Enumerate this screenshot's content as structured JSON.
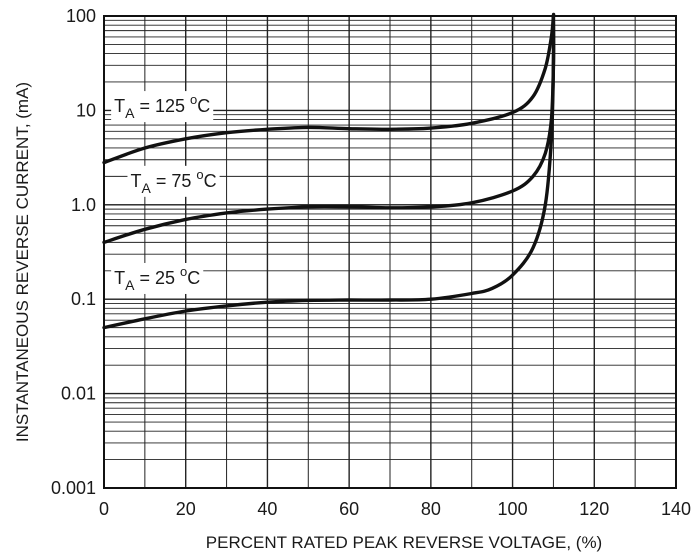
{
  "chart_data": {
    "type": "line",
    "title": "",
    "xlabel": "PERCENT RATED PEAK REVERSE VOLTAGE, (%)",
    "ylabel": "INSTANTANEOUS REVERSE CURRENT, (mA)",
    "xlim": [
      0,
      140
    ],
    "ylim": [
      0.001,
      100
    ],
    "yscale": "log",
    "grid": true,
    "x_ticks": [
      "0",
      "20",
      "40",
      "60",
      "80",
      "100",
      "120",
      "140"
    ],
    "y_ticks": [
      "0.001",
      "0.01",
      "0.1",
      "1.0",
      "10",
      "100"
    ],
    "series": [
      {
        "name": "TA = 125 °C",
        "label_main": "T",
        "label_sub": "A",
        "label_rest": " = 125 ",
        "label_sup": "o",
        "label_unit": "C",
        "x": [
          0,
          10,
          20,
          30,
          40,
          50,
          60,
          70,
          80,
          90,
          100,
          105,
          108,
          109.5,
          110,
          110
        ],
        "y": [
          2.8,
          4.0,
          5.0,
          5.8,
          6.3,
          6.6,
          6.4,
          6.3,
          6.5,
          7.3,
          9.5,
          14,
          28,
          60,
          100,
          100
        ]
      },
      {
        "name": "TA = 75 °C",
        "label_main": "T",
        "label_sub": "A",
        "label_rest": " = 75 ",
        "label_sup": "o",
        "label_unit": "C",
        "x": [
          0,
          10,
          20,
          30,
          40,
          50,
          60,
          70,
          80,
          90,
          100,
          105,
          108,
          109.5,
          110,
          110
        ],
        "y": [
          0.4,
          0.55,
          0.7,
          0.82,
          0.9,
          0.95,
          0.95,
          0.93,
          0.95,
          1.05,
          1.4,
          2.0,
          3.5,
          8,
          30,
          100
        ]
      },
      {
        "name": "TA = 25 °C",
        "label_main": "T",
        "label_sub": "A",
        "label_rest": " = 25 ",
        "label_sup": "o",
        "label_unit": "C",
        "x": [
          0,
          10,
          20,
          30,
          40,
          50,
          60,
          70,
          80,
          90,
          95,
          100,
          105,
          108,
          109.5,
          110,
          110
        ],
        "y": [
          0.05,
          0.062,
          0.075,
          0.085,
          0.093,
          0.097,
          0.098,
          0.098,
          0.1,
          0.115,
          0.13,
          0.18,
          0.35,
          1.0,
          5,
          30,
          100
        ]
      }
    ]
  }
}
